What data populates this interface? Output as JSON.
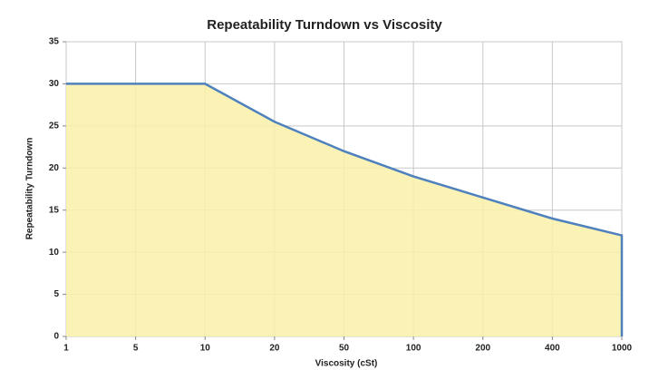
{
  "chart_data": {
    "type": "area",
    "title": "Repeatability Turndown vs Viscosity",
    "x_label": "Viscosity (cSt)",
    "y_label": "Repeatability Turndown",
    "categories": [
      "1",
      "5",
      "10",
      "20",
      "50",
      "100",
      "200",
      "400",
      "1000"
    ],
    "values": [
      30,
      30,
      30,
      25.5,
      22,
      19,
      16.5,
      14,
      12
    ],
    "color": "#4f81bd",
    "fill": "#faf0a8",
    "ylim": [
      0,
      35
    ],
    "yticks": [
      0,
      5,
      10,
      15,
      20,
      25,
      30,
      35
    ],
    "grid": true
  }
}
